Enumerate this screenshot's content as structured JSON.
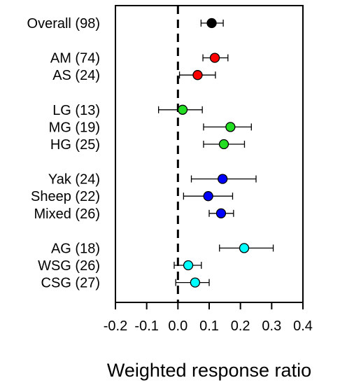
{
  "chart_data": {
    "type": "scatter",
    "subtype": "forest-plot",
    "title": "",
    "xlabel": "Weighted response ratio",
    "ylabel": "",
    "xlim": [
      -0.2,
      0.4
    ],
    "x_ticks": [
      -0.2,
      -0.1,
      0.0,
      0.1,
      0.2,
      0.3,
      0.4
    ],
    "x_tick_labels": [
      "-0.2",
      "-0.1",
      "0.0",
      "0.1",
      "0.2",
      "0.3",
      "0.4"
    ],
    "reference_line": {
      "x": 0,
      "style": "dashed"
    },
    "grid": false,
    "legend": null,
    "groups": [
      {
        "rows": [
          {
            "label": "Overall (98)",
            "estimate": 0.108,
            "ci": [
              0.074,
              0.145
            ],
            "color": "#000000"
          }
        ]
      },
      {
        "rows": [
          {
            "label": "AM (74)",
            "estimate": 0.118,
            "ci": [
              0.08,
              0.16
            ],
            "color": "#ff0000"
          },
          {
            "label": "AS (24)",
            "estimate": 0.063,
            "ci": [
              0.005,
              0.12
            ],
            "color": "#ff0000"
          }
        ]
      },
      {
        "rows": [
          {
            "label": "LG (13)",
            "estimate": 0.015,
            "ci": [
              -0.062,
              0.078
            ],
            "color": "#22dd22"
          },
          {
            "label": "MG (19)",
            "estimate": 0.168,
            "ci": [
              0.082,
              0.235
            ],
            "color": "#22dd22"
          },
          {
            "label": "HG (25)",
            "estimate": 0.147,
            "ci": [
              0.082,
              0.213
            ],
            "color": "#22dd22"
          }
        ]
      },
      {
        "rows": [
          {
            "label": "Yak (24)",
            "estimate": 0.143,
            "ci": [
              0.043,
              0.25
            ],
            "color": "#0000ff"
          },
          {
            "label": "Sheep (22)",
            "estimate": 0.097,
            "ci": [
              0.018,
              0.175
            ],
            "color": "#0000ff"
          },
          {
            "label": "Mixed (26)",
            "estimate": 0.138,
            "ci": [
              0.1,
              0.178
            ],
            "color": "#0000ff"
          }
        ]
      },
      {
        "rows": [
          {
            "label": "AG (18)",
            "estimate": 0.212,
            "ci": [
              0.133,
              0.305
            ],
            "color": "#00ffff"
          },
          {
            "label": "WSG (26)",
            "estimate": 0.033,
            "ci": [
              -0.012,
              0.075
            ],
            "color": "#00ffff"
          },
          {
            "label": "CSG (27)",
            "estimate": 0.055,
            "ci": [
              -0.007,
              0.1
            ],
            "color": "#00ffff"
          }
        ]
      }
    ]
  }
}
